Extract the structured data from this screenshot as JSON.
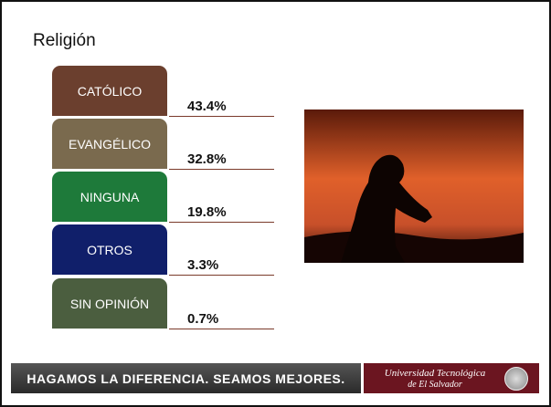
{
  "title": "Religión",
  "items": [
    {
      "label": "CATÓLICO",
      "percent": "43.4%"
    },
    {
      "label": "EVANGÉLICO",
      "percent": "32.8%"
    },
    {
      "label": "NINGUNA",
      "percent": "19.8%"
    },
    {
      "label": "OTROS",
      "percent": "3.3%"
    },
    {
      "label": "SIN OPINIÓN",
      "percent": "0.7%"
    }
  ],
  "footer": {
    "slogan": "HAGAMOS LA DIFERENCIA. SEAMOS MEJORES.",
    "university": "Universidad Tecnológica",
    "university_place": "de El Salvador"
  }
}
